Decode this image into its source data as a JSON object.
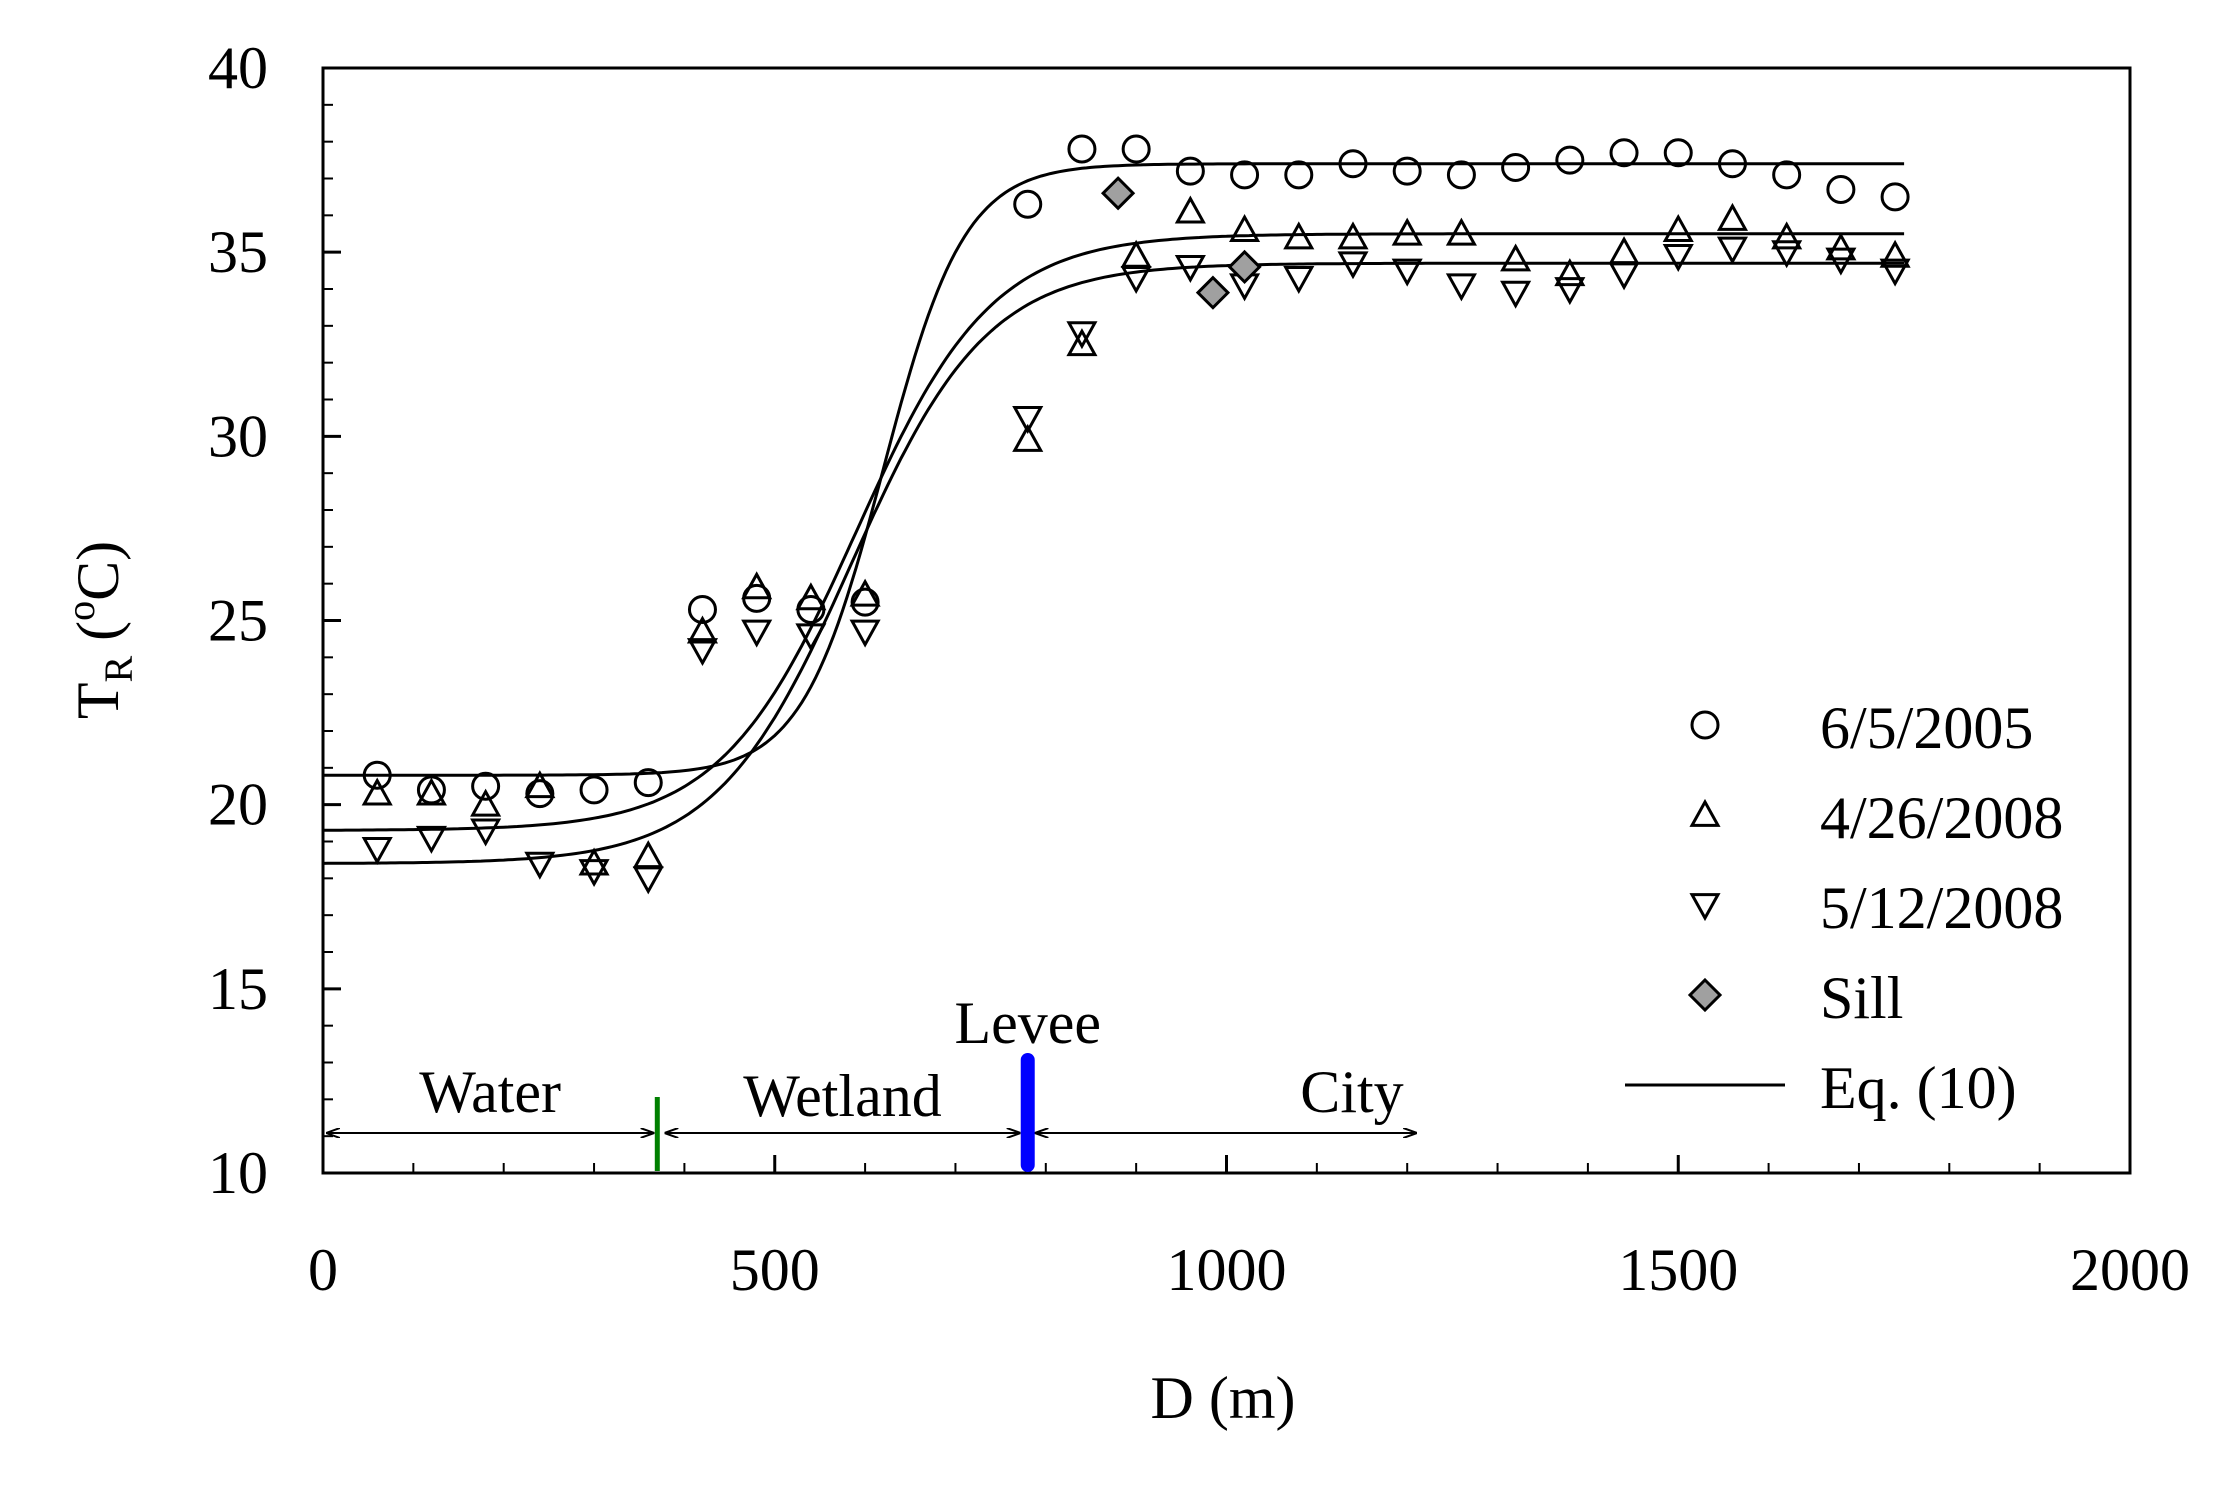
{
  "chart_data": {
    "type": "scatter",
    "title": "",
    "xlabel": "D (m)",
    "ylabel_main": "T",
    "ylabel_sub": "R",
    "ylabel_open": " (",
    "ylabel_sup": "o",
    "ylabel_close": "C)",
    "xlim": [
      0,
      2000
    ],
    "ylim": [
      10,
      40
    ],
    "xticks": [
      0,
      500,
      1000,
      1500,
      2000
    ],
    "yticks": [
      10,
      15,
      20,
      25,
      30,
      35,
      40
    ],
    "grid": false,
    "legend_position": "right",
    "series": [
      {
        "name": "6/5/2005",
        "marker": "circle",
        "x": [
          60,
          120,
          180,
          240,
          300,
          360,
          420,
          480,
          540,
          600,
          780,
          840,
          900,
          960,
          1020,
          1080,
          1140,
          1200,
          1260,
          1320,
          1380,
          1440,
          1500,
          1560,
          1620,
          1680,
          1740
        ],
        "y": [
          20.8,
          20.4,
          20.5,
          20.3,
          20.4,
          20.6,
          25.3,
          25.6,
          25.3,
          25.5,
          36.3,
          37.8,
          37.8,
          37.2,
          37.1,
          37.1,
          37.4,
          37.2,
          37.1,
          37.3,
          37.5,
          37.7,
          37.7,
          37.4,
          37.1,
          36.7,
          36.5
        ]
      },
      {
        "name": "4/26/2008",
        "marker": "triangle-up",
        "x": [
          60,
          120,
          180,
          240,
          300,
          360,
          420,
          480,
          540,
          600,
          780,
          840,
          900,
          960,
          1020,
          1080,
          1140,
          1200,
          1260,
          1320,
          1380,
          1440,
          1500,
          1560,
          1620,
          1680,
          1740
        ],
        "y": [
          20.3,
          20.3,
          20.0,
          20.5,
          18.4,
          18.6,
          24.7,
          25.9,
          25.6,
          25.7,
          29.9,
          32.5,
          34.9,
          36.1,
          35.6,
          35.4,
          35.4,
          35.5,
          35.5,
          34.8,
          34.4,
          35.0,
          35.6,
          35.9,
          35.4,
          35.1,
          34.9
        ]
      },
      {
        "name": "5/12/2008",
        "marker": "triangle-down",
        "x": [
          60,
          120,
          180,
          240,
          300,
          360,
          420,
          480,
          540,
          600,
          780,
          840,
          900,
          960,
          1020,
          1080,
          1140,
          1200,
          1260,
          1320,
          1380,
          1440,
          1500,
          1560,
          1620,
          1680,
          1740
        ],
        "y": [
          18.8,
          19.1,
          19.3,
          18.4,
          18.2,
          18.0,
          24.2,
          24.7,
          24.6,
          24.7,
          30.5,
          32.8,
          34.3,
          34.6,
          34.1,
          34.3,
          34.7,
          34.5,
          34.1,
          33.9,
          34.0,
          34.4,
          34.9,
          35.1,
          35.0,
          34.8,
          34.5
        ]
      },
      {
        "name": "Sill",
        "marker": "diamond",
        "x": [
          880,
          985,
          1020
        ],
        "y": [
          36.6,
          33.9,
          34.6
        ]
      }
    ],
    "fit_name": "Eq. (10)",
    "fits": [
      {
        "low": 20.8,
        "high": 37.4,
        "mid": 620,
        "scale": 45
      },
      {
        "low": 19.3,
        "high": 35.5,
        "mid": 590,
        "scale": 75
      },
      {
        "low": 18.4,
        "high": 34.7,
        "mid": 585,
        "scale": 75
      }
    ],
    "fit_range": [
      0,
      1750
    ],
    "annotations": {
      "water": "Water",
      "wetland": "Wetland",
      "levee": "Levee",
      "city": "City",
      "water_boundary_x": 370,
      "levee_x": 780,
      "city_end_x": 1210,
      "water_color": "#008000",
      "levee_color": "#0000ff"
    }
  }
}
